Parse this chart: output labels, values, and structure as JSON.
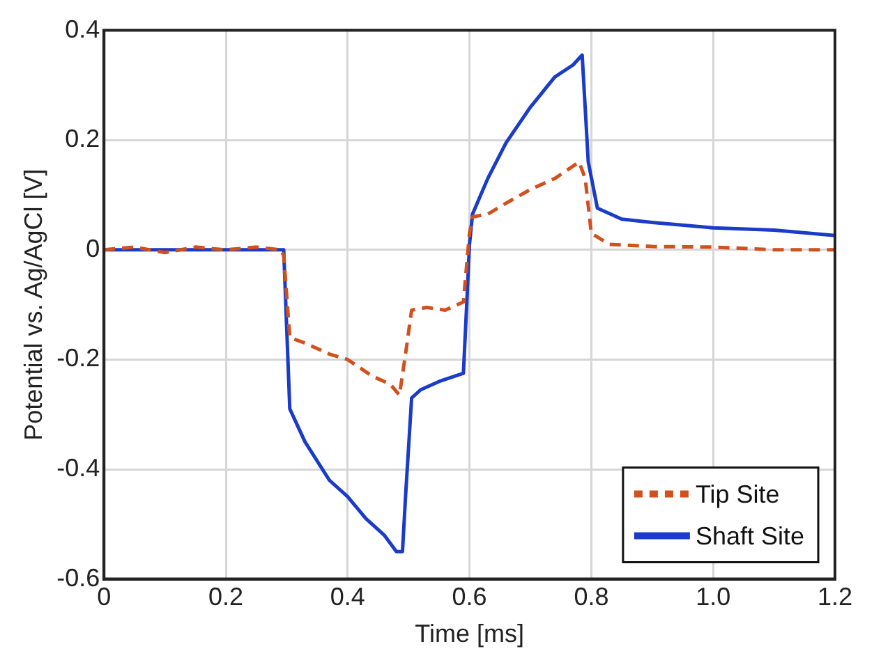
{
  "chart_data": {
    "type": "line",
    "xlabel": "Time [ms]",
    "ylabel": "Potential vs. Ag/AgCl [V]",
    "xlim": [
      0,
      1.2
    ],
    "xticks": [
      0,
      0.2,
      0.4,
      0.6,
      0.8,
      {
        "value": 1,
        "label": "1.0"
      },
      1.2
    ],
    "ylim": [
      -0.6,
      0.4
    ],
    "yticks": [
      -0.6,
      -0.4,
      -0.2,
      0,
      0.2,
      0.4
    ],
    "grid": true,
    "legend": "bottom right",
    "marker": "none",
    "series": [
      {
        "name": "Tip Site",
        "color": "#d2501e",
        "line_style": "dashed",
        "x": [
          0,
          0.05,
          0.1,
          0.15,
          0.2,
          0.25,
          0.29,
          0.295,
          0.305,
          0.33,
          0.37,
          0.4,
          0.44,
          0.47,
          0.485,
          0.495,
          0.505,
          0.53,
          0.56,
          0.59,
          0.6,
          0.605,
          0.63,
          0.66,
          0.7,
          0.74,
          0.78,
          0.79,
          0.8,
          0.83,
          0.9,
          1.0,
          1.1,
          1.2
        ],
        "values": [
          0,
          0.005,
          -0.005,
          0.005,
          0,
          0.005,
          0,
          -0.01,
          -0.16,
          -0.17,
          -0.19,
          -0.2,
          -0.23,
          -0.245,
          -0.265,
          -0.19,
          -0.11,
          -0.105,
          -0.11,
          -0.095,
          0.03,
          0.06,
          0.065,
          0.085,
          0.11,
          0.13,
          0.16,
          0.13,
          0.03,
          0.01,
          0.006,
          0.005,
          0,
          0
        ]
      },
      {
        "name": "Shaft Site",
        "color": "#1a3cc8",
        "line_style": "solid",
        "x": [
          0,
          0.1,
          0.2,
          0.29,
          0.295,
          0.305,
          0.33,
          0.37,
          0.4,
          0.43,
          0.46,
          0.48,
          0.49,
          0.495,
          0.505,
          0.52,
          0.55,
          0.59,
          0.595,
          0.6,
          0.605,
          0.63,
          0.66,
          0.7,
          0.74,
          0.77,
          0.785,
          0.795,
          0.81,
          0.85,
          0.9,
          1.0,
          1.1,
          1.2
        ],
        "values": [
          0,
          0,
          0,
          0,
          0,
          -0.29,
          -0.35,
          -0.42,
          -0.45,
          -0.49,
          -0.52,
          -0.55,
          -0.55,
          -0.45,
          -0.27,
          -0.255,
          -0.24,
          -0.225,
          -0.11,
          0.01,
          0.065,
          0.13,
          0.195,
          0.26,
          0.315,
          0.337,
          0.355,
          0.16,
          0.076,
          0.056,
          0.05,
          0.04,
          0.036,
          0.026
        ]
      }
    ]
  }
}
